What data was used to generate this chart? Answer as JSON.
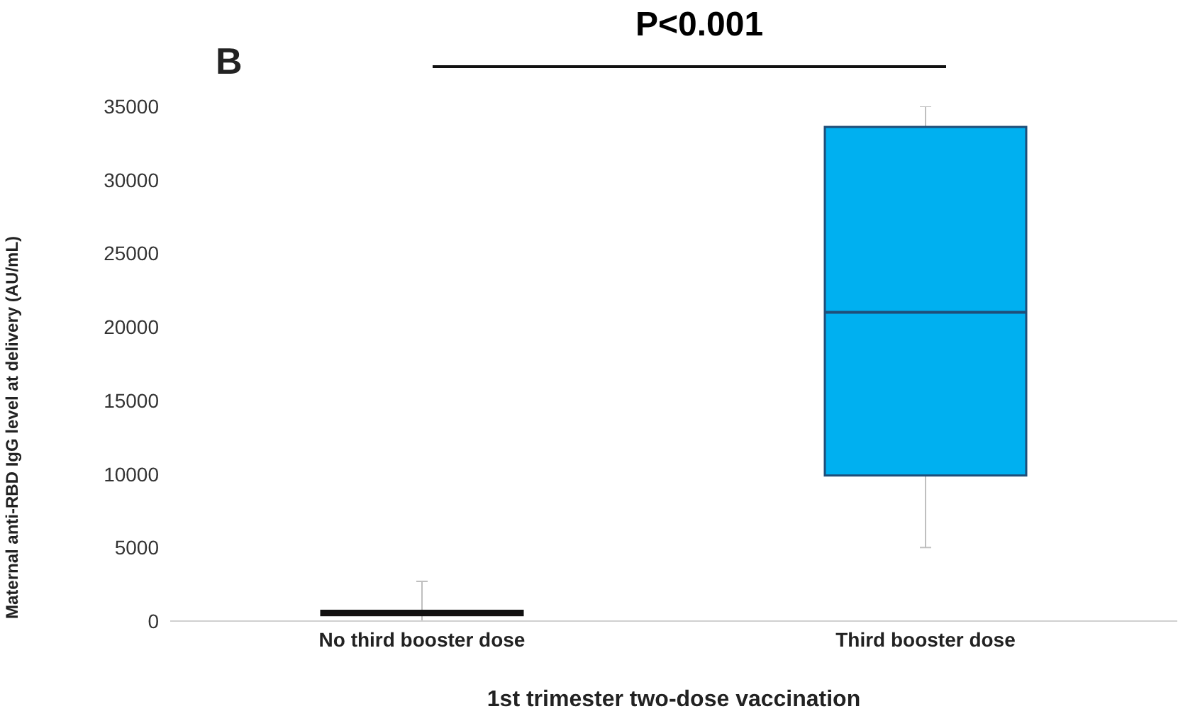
{
  "chart_data": {
    "type": "box",
    "title": "P<0.001",
    "annotations": [
      "B"
    ],
    "categories": [
      "No third booster dose",
      "Third booster dose"
    ],
    "boxes": [
      {
        "low": 0,
        "q1": 400,
        "median": 550,
        "q3": 700,
        "high": 2700
      },
      {
        "low": 5000,
        "q1": 9900,
        "median": 21000,
        "q3": 33600,
        "high": 35000
      }
    ],
    "colors": [
      "#6b1010",
      "#00b0f0"
    ],
    "xlabel": "1st trimester two-dose vaccination",
    "ylabel": "Maternal anti-RBD IgG level at delivery (AU/mL)",
    "ylim": [
      0,
      35000
    ],
    "yticks": [
      0,
      5000,
      10000,
      15000,
      20000,
      25000,
      30000,
      35000
    ],
    "grid": false,
    "legend": false
  }
}
